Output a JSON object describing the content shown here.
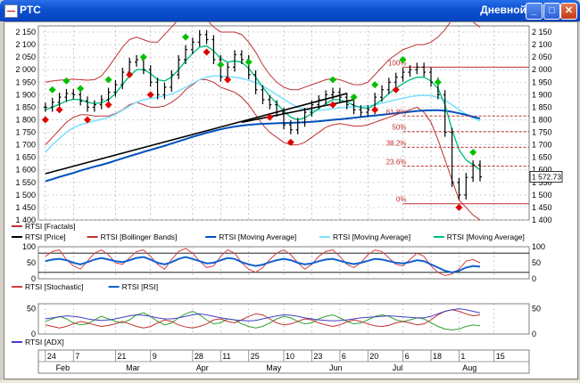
{
  "window": {
    "title": "РТС",
    "mode": "Дневной",
    "buttons": {
      "minimize": "_",
      "maximize": "□",
      "close": "✕"
    }
  },
  "colors": {
    "price": "#000000",
    "fractal_up": "#00c000",
    "fractal_down": "#e00000",
    "bollinger": "#c03030",
    "ma_fast": "#00c080",
    "ma_mid": "#80e0ff",
    "ma_slow": "#0050c0",
    "trend": "#000000",
    "fib": "#c03030",
    "stoch": "#d04040",
    "rsi": "#1060d0",
    "adx": "#4040c0",
    "di_plus": "#30a030",
    "di_minus": "#c03030"
  },
  "chart_data": [
    {
      "type": "line",
      "panel": "price",
      "y_axis_labels": [
        "2 150",
        "2 100",
        "2 050",
        "2 000",
        "1 950",
        "1 900",
        "1 850",
        "1 800",
        "1 750",
        "1 700",
        "1 650",
        "1 600",
        "1 550",
        "1 500",
        "1 450",
        "1 400"
      ],
      "ylim": [
        1400,
        2175
      ],
      "grid": true,
      "last_value_label": "1 572.73",
      "fibonacci": {
        "levels": [
          "100%",
          "61.8%",
          "50%",
          "38.2%",
          "23.6%",
          "0%"
        ],
        "values": [
          2010,
          1815,
          1753,
          1690,
          1615,
          1465
        ]
      },
      "trend_lines": [
        {
          "x": [
            0,
            43
          ],
          "y": [
            1585,
            1905
          ]
        },
        {
          "x": [
            28,
            44
          ],
          "y": [
            1790,
            1880
          ]
        }
      ],
      "series": [
        {
          "name": "RTSI [Price]",
          "close": [
            1850,
            1870,
            1890,
            1905,
            1900,
            1875,
            1850,
            1860,
            1880,
            1910,
            1940,
            1990,
            2030,
            2040,
            2000,
            1950,
            1900,
            1930,
            1980,
            2040,
            2080,
            2110,
            2140,
            2120,
            2040,
            1970,
            2010,
            2060,
            2040,
            1980,
            1920,
            1880,
            1860,
            1830,
            1780,
            1760,
            1790,
            1830,
            1860,
            1880,
            1900,
            1910,
            1890,
            1860,
            1840,
            1830,
            1840,
            1890,
            1920,
            1950,
            1970,
            1990,
            2000,
            2010,
            1990,
            1950,
            1900,
            1750,
            1550,
            1500,
            1570,
            1620,
            1572
          ]
        },
        {
          "name": "RTSI [Bollinger Bands]",
          "upper": [
            1950,
            1955,
            1958,
            1960,
            1962,
            1960,
            1958,
            1960,
            1975,
            2010,
            2050,
            2090,
            2120,
            2130,
            2120,
            2110,
            2110,
            2140,
            2170,
            2200,
            2220,
            2230,
            2220,
            2200,
            2170,
            2150,
            2150,
            2150,
            2140,
            2110,
            2070,
            2020,
            1980,
            1950,
            1930,
            1920,
            1920,
            1930,
            1940,
            1950,
            1960,
            1965,
            1960,
            1950,
            1940,
            1940,
            1950,
            1980,
            2010,
            2040,
            2060,
            2080,
            2090,
            2100,
            2100,
            2110,
            2130,
            2160,
            2200,
            2230,
            2210,
            2190,
            2170
          ],
          "lower": [
            1700,
            1730,
            1760,
            1790,
            1810,
            1820,
            1820,
            1815,
            1815,
            1815,
            1825,
            1840,
            1860,
            1870,
            1860,
            1850,
            1850,
            1855,
            1870,
            1890,
            1920,
            1940,
            1960,
            1960,
            1950,
            1930,
            1920,
            1910,
            1890,
            1860,
            1820,
            1780,
            1750,
            1730,
            1710,
            1700,
            1700,
            1710,
            1730,
            1750,
            1770,
            1780,
            1785,
            1780,
            1775,
            1775,
            1780,
            1790,
            1800,
            1810,
            1820,
            1830,
            1840,
            1850,
            1830,
            1790,
            1720,
            1640,
            1560,
            1480,
            1450,
            1420,
            1400
          ]
        },
        {
          "name": "RTSI [Moving Average]",
          "values": [
            1840,
            1850,
            1862,
            1875,
            1882,
            1880,
            1870,
            1865,
            1868,
            1880,
            1905,
            1940,
            1975,
            2000,
            2000,
            1985,
            1960,
            1955,
            1970,
            2000,
            2035,
            2065,
            2090,
            2095,
            2075,
            2045,
            2030,
            2035,
            2030,
            2005,
            1970,
            1930,
            1895,
            1865,
            1835,
            1810,
            1800,
            1808,
            1825,
            1845,
            1865,
            1880,
            1880,
            1870,
            1858,
            1848,
            1845,
            1860,
            1880,
            1905,
            1925,
            1945,
            1960,
            1970,
            1970,
            1955,
            1925,
            1860,
            1760,
            1680,
            1640,
            1620,
            1600
          ],
          "role": "fast"
        },
        {
          "name": "RTSI [Moving Average]",
          "values": [
            1670,
            1700,
            1725,
            1750,
            1768,
            1780,
            1788,
            1795,
            1802,
            1810,
            1822,
            1838,
            1855,
            1870,
            1880,
            1885,
            1890,
            1895,
            1903,
            1915,
            1930,
            1945,
            1960,
            1970,
            1975,
            1975,
            1972,
            1970,
            1965,
            1958,
            1948,
            1935,
            1918,
            1900,
            1882,
            1865,
            1850,
            1842,
            1838,
            1838,
            1840,
            1844,
            1848,
            1850,
            1852,
            1853,
            1855,
            1860,
            1866,
            1873,
            1880,
            1886,
            1892,
            1896,
            1898,
            1896,
            1890,
            1878,
            1860,
            1840,
            1822,
            1808,
            1795
          ],
          "role": "mid"
        },
        {
          "name": "RTSI [Moving Average]",
          "values": [
            1555,
            1563,
            1572,
            1580,
            1588,
            1597,
            1605,
            1613,
            1620,
            1628,
            1637,
            1646,
            1655,
            1663,
            1672,
            1680,
            1688,
            1696,
            1705,
            1714,
            1723,
            1732,
            1740,
            1748,
            1755,
            1762,
            1768,
            1773,
            1777,
            1780,
            1782,
            1784,
            1785,
            1786,
            1787,
            1788,
            1789,
            1790,
            1792,
            1794,
            1797,
            1800,
            1802,
            1805,
            1808,
            1811,
            1814,
            1817,
            1820,
            1823,
            1826,
            1829,
            1832,
            1835,
            1837,
            1838,
            1838,
            1836,
            1832,
            1826,
            1820,
            1812,
            1805
          ],
          "role": "slow"
        }
      ],
      "fractals_up_index": [
        1,
        3,
        5,
        9,
        14,
        20,
        25,
        29,
        41,
        44,
        47,
        51,
        56,
        61
      ],
      "fractals_down_index": [
        0,
        2,
        6,
        9,
        12,
        15,
        23,
        26,
        32,
        35,
        41,
        47,
        50,
        59
      ]
    },
    {
      "type": "line",
      "panel": "oscillator",
      "y_axis_labels": [
        "100",
        "50",
        "0"
      ],
      "ylim": [
        0,
        100
      ],
      "levels": [
        80,
        20
      ],
      "series": [
        {
          "name": "RTSI [Stochastic]",
          "values": [
            70,
            85,
            90,
            60,
            40,
            30,
            55,
            80,
            90,
            75,
            50,
            45,
            65,
            85,
            90,
            70,
            45,
            30,
            60,
            85,
            95,
            80,
            55,
            35,
            40,
            70,
            90,
            80,
            50,
            30,
            20,
            35,
            60,
            80,
            90,
            75,
            50,
            30,
            45,
            70,
            85,
            90,
            70,
            45,
            35,
            50,
            75,
            90,
            85,
            65,
            45,
            40,
            60,
            80,
            70,
            40,
            20,
            10,
            15,
            30,
            55,
            60,
            50
          ]
        },
        {
          "name": "RTSI [RSI]",
          "values": [
            55,
            60,
            62,
            58,
            50,
            45,
            52,
            60,
            65,
            60,
            55,
            52,
            58,
            65,
            68,
            60,
            50,
            45,
            52,
            62,
            68,
            62,
            55,
            48,
            50,
            58,
            65,
            62,
            52,
            45,
            40,
            44,
            52,
            58,
            62,
            58,
            50,
            45,
            48,
            55,
            60,
            62,
            56,
            50,
            46,
            50,
            56,
            62,
            60,
            55,
            50,
            48,
            52,
            58,
            55,
            45,
            35,
            25,
            20,
            25,
            35,
            40,
            38
          ]
        }
      ]
    },
    {
      "type": "line",
      "panel": "adx",
      "y_axis_labels": [
        "50",
        "0"
      ],
      "ylim": [
        0,
        60
      ],
      "series": [
        {
          "name": "RTSI [ADX]",
          "values": [
            30,
            32,
            34,
            36,
            35,
            33,
            30,
            28,
            27,
            28,
            30,
            33,
            36,
            38,
            37,
            35,
            32,
            30,
            30,
            32,
            35,
            38,
            40,
            38,
            35,
            32,
            30,
            28,
            27,
            26,
            27,
            30,
            33,
            36,
            38,
            37,
            35,
            32,
            30,
            28,
            27,
            26,
            27,
            28,
            30,
            32,
            33,
            34,
            35,
            36,
            35,
            34,
            33,
            32,
            32,
            35,
            40,
            45,
            48,
            50,
            48,
            45,
            42
          ]
        },
        {
          "name": "DI+",
          "values": [
            25,
            30,
            35,
            30,
            22,
            18,
            20,
            28,
            35,
            30,
            25,
            22,
            28,
            38,
            42,
            35,
            25,
            18,
            22,
            32,
            40,
            45,
            38,
            28,
            20,
            22,
            30,
            28,
            20,
            15,
            12,
            15,
            22,
            30,
            35,
            32,
            25,
            20,
            22,
            30,
            35,
            38,
            32,
            25,
            20,
            22,
            28,
            35,
            38,
            35,
            28,
            25,
            28,
            32,
            30,
            22,
            15,
            10,
            8,
            10,
            15,
            18,
            16
          ]
        },
        {
          "name": "DI-",
          "values": [
            18,
            15,
            12,
            15,
            20,
            25,
            22,
            18,
            15,
            17,
            20,
            25,
            20,
            15,
            12,
            15,
            22,
            28,
            25,
            18,
            14,
            12,
            15,
            20,
            28,
            30,
            25,
            22,
            28,
            35,
            40,
            38,
            30,
            22,
            18,
            20,
            25,
            30,
            28,
            22,
            18,
            15,
            18,
            24,
            28,
            25,
            20,
            16,
            15,
            17,
            22,
            25,
            22,
            18,
            20,
            28,
            38,
            45,
            48,
            45,
            40,
            36,
            38
          ]
        }
      ]
    }
  ],
  "legend_price": [
    {
      "label": "RTSI [Fractals]",
      "color": "#c03030"
    },
    {
      "label": "RTSI [Price]",
      "color": "#000000"
    },
    {
      "label": "RTSI [Bollinger Bands]",
      "color": "#c03030"
    },
    {
      "label": "RTSI [Moving Average]",
      "color": "#0050c0"
    },
    {
      "label": "RTSI [Moving Average]",
      "color": "#80e0ff"
    },
    {
      "label": "RTSI [Moving Average]",
      "color": "#00c080"
    }
  ],
  "legend_osc": [
    {
      "label": "RTSI [Stochastic]",
      "color": "#d04040"
    },
    {
      "label": "RTSI [RSI]",
      "color": "#1060d0"
    }
  ],
  "legend_adx": [
    {
      "label": "RTSI [ADX]",
      "color": "#4040c0"
    }
  ],
  "x_axis": {
    "day_ticks": [
      {
        "label": "24",
        "i": 0
      },
      {
        "label": "7",
        "i": 4
      },
      {
        "label": "21",
        "i": 10
      },
      {
        "label": "9",
        "i": 15
      },
      {
        "label": "28",
        "i": 21
      },
      {
        "label": "11",
        "i": 25
      },
      {
        "label": "25",
        "i": 29
      },
      {
        "label": "10",
        "i": 34
      },
      {
        "label": "23",
        "i": 38
      },
      {
        "label": "6",
        "i": 42
      },
      {
        "label": "20",
        "i": 46
      },
      {
        "label": "6",
        "i": 51
      },
      {
        "label": "18",
        "i": 55
      },
      {
        "label": "1",
        "i": 59
      },
      {
        "label": "15",
        "i": 64
      }
    ],
    "month_ticks": [
      {
        "label": "Feb",
        "i": 2
      },
      {
        "label": "Mar",
        "i": 12
      },
      {
        "label": "Apr",
        "i": 22
      },
      {
        "label": "May",
        "i": 32
      },
      {
        "label": "Jun",
        "i": 41
      },
      {
        "label": "Jul",
        "i": 50
      },
      {
        "label": "Aug",
        "i": 60
      }
    ]
  }
}
